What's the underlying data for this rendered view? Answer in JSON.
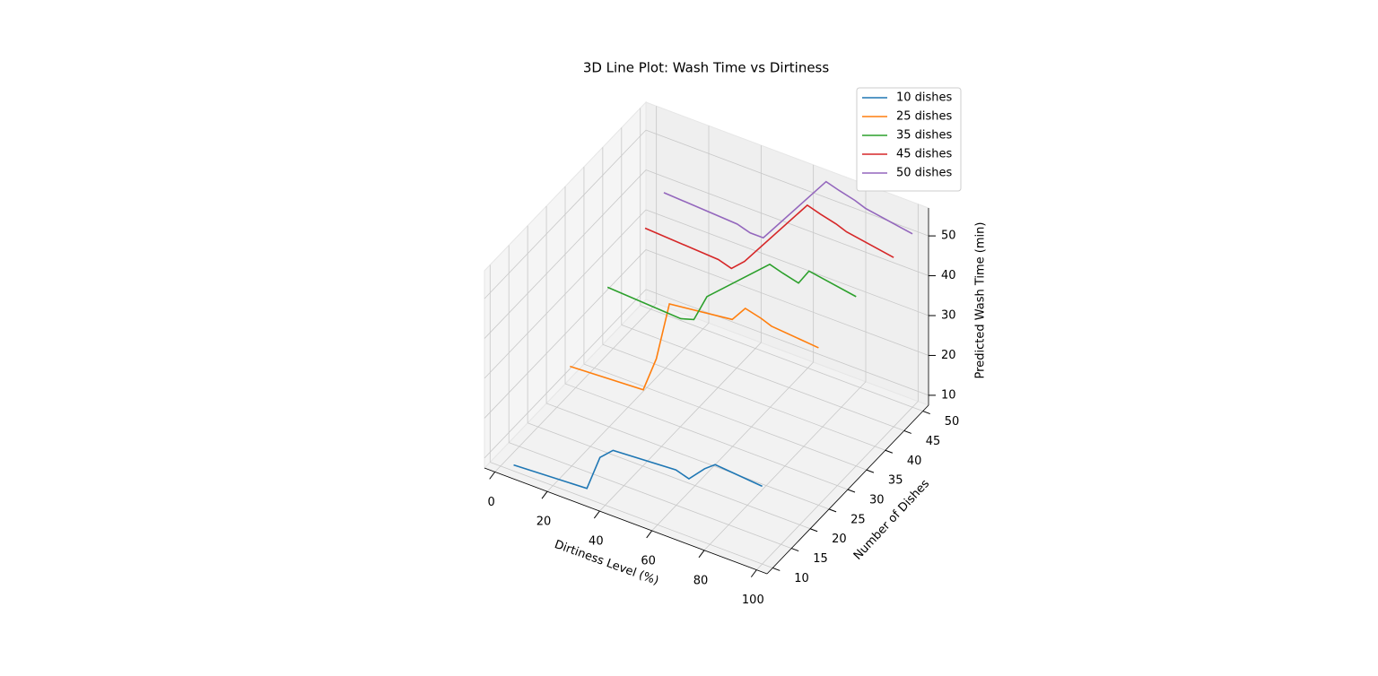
{
  "chart_data": {
    "type": "line3d",
    "title": "3D Line Plot: Wash Time vs Dirtiness",
    "xlabel": "Dirtiness Level (%)",
    "ylabel": "Number of Dishes",
    "zlabel": "Predicted Wash Time (min)",
    "x": [
      5,
      33,
      38,
      43,
      67,
      72,
      78,
      82,
      100
    ],
    "series": [
      {
        "name": "10 dishes",
        "color": "#1f77b4",
        "dishes": 10,
        "values": [
          9,
          10,
          19,
          22,
          23,
          22,
          26,
          28,
          27
        ]
      },
      {
        "name": "25 dishes",
        "color": "#ff7f0e",
        "dishes": 25,
        "values": [
          19,
          20,
          29,
          44,
          46,
          50,
          49,
          48,
          47
        ]
      },
      {
        "name": "35 dishes",
        "color": "#2ca02c",
        "dishes": 35,
        "values": [
          29,
          28,
          29,
          36,
          50,
          49,
          48,
          52,
          50
        ]
      },
      {
        "name": "45 dishes",
        "color": "#d62728",
        "dishes": 45,
        "values": [
          34,
          33,
          32,
          35,
          55,
          54,
          53,
          52,
          50
        ]
      },
      {
        "name": "50 dishes",
        "color": "#9467bd",
        "dishes": 50,
        "values": [
          38,
          37,
          36,
          36,
          56,
          55,
          54,
          53,
          51
        ]
      }
    ],
    "xlim": [
      -4,
      104
    ],
    "ylim": [
      8.5,
      51.5
    ],
    "zlim": [
      7.5,
      57
    ],
    "xticks": [
      0,
      20,
      40,
      60,
      80,
      100
    ],
    "yticks": [
      10,
      15,
      20,
      25,
      30,
      35,
      40,
      45,
      50
    ],
    "zticks": [
      10,
      20,
      30,
      40,
      50
    ],
    "grid": true,
    "legend": "upper right"
  }
}
